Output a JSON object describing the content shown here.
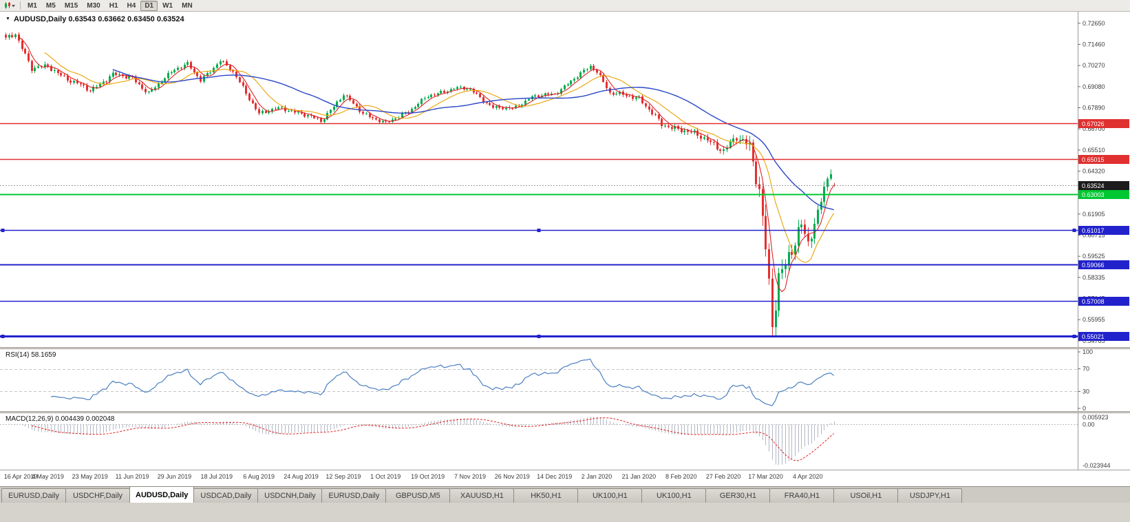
{
  "toolbar": {
    "chart_icon": "candlestick-chart-icon",
    "periods": [
      "M1",
      "M5",
      "M15",
      "M30",
      "H1",
      "H4",
      "D1",
      "W1",
      "MN"
    ],
    "active_period": "D1"
  },
  "chart": {
    "title": "AUDUSD,Daily 0.63543 0.63662 0.63450 0.63524",
    "rsi_label": "RSI(14) 58.1659",
    "macd_label": "MACD(12,26,9) 0.004439 0.002048"
  },
  "chart_data": {
    "type": "candlestick",
    "symbol": "AUDUSD",
    "timeframe": "Daily",
    "last_ohlc": {
      "open": 0.63543,
      "high": 0.63662,
      "low": 0.6345,
      "close": 0.63524
    },
    "current_price_label": "0.63524",
    "colors": {
      "up": "#00ab4e",
      "down": "#e33030",
      "background": "#ffffff"
    },
    "price_axis": {
      "max": 0.733,
      "min": 0.5441,
      "ticks": [
        "0.72650",
        "0.71460",
        "0.70270",
        "0.69080",
        "0.67890",
        "0.66700",
        "0.65510",
        "0.64320",
        "0.61905",
        "0.60715",
        "0.59525",
        "0.58335",
        "0.57145",
        "0.55955",
        "0.54765"
      ]
    },
    "hlines": [
      {
        "price": 0.67026,
        "label": "0.67026",
        "color": "#e03030",
        "width": 1.6,
        "handles": false
      },
      {
        "price": 0.65015,
        "label": "0.65015",
        "color": "#e03030",
        "width": 1.6,
        "handles": false
      },
      {
        "price": 0.63003,
        "label": "0.63003",
        "color": "#00c832",
        "width": 2,
        "handles": false
      },
      {
        "price": 0.61017,
        "label": "0.61017",
        "color": "#2222cc",
        "width": 1.6,
        "handles": true
      },
      {
        "price": 0.59066,
        "label": "0.59066",
        "color": "#2222cc",
        "width": 2,
        "handles": false
      },
      {
        "price": 0.57008,
        "label": "0.57008",
        "color": "#2222cc",
        "width": 1.6,
        "handles": false
      },
      {
        "price": 0.55021,
        "label": "0.55021",
        "color": "#2222cc",
        "width": 3,
        "handles": true
      }
    ],
    "date_axis": {
      "labels": [
        "16 Apr 2019",
        "4 May 2019",
        "23 May 2019",
        "11 Jun 2019",
        "29 Jun 2019",
        "18 Jul 2019",
        "6 Aug 2019",
        "24 Aug 2019",
        "12 Sep 2019",
        "1 Oct 2019",
        "19 Oct 2019",
        "7 Nov 2019",
        "26 Nov 2019",
        "14 Dec 2019",
        "2 Jan 2020",
        "21 Jan 2020",
        "8 Feb 2020",
        "27 Feb 2020",
        "17 Mar 2020",
        "4 Apr 2020"
      ],
      "candles_per_label": 13
    },
    "candles": {
      "count": 256,
      "close_anchors": [
        [
          0,
          0.7175
        ],
        [
          3,
          0.7208
        ],
        [
          8,
          0.701
        ],
        [
          13,
          0.7022
        ],
        [
          20,
          0.694
        ],
        [
          26,
          0.6888
        ],
        [
          33,
          0.6975
        ],
        [
          39,
          0.6958
        ],
        [
          44,
          0.6868
        ],
        [
          52,
          0.701
        ],
        [
          56,
          0.7035
        ],
        [
          60,
          0.694
        ],
        [
          66,
          0.7058
        ],
        [
          70,
          0.6988
        ],
        [
          78,
          0.6758
        ],
        [
          85,
          0.6788
        ],
        [
          91,
          0.6756
        ],
        [
          97,
          0.6714
        ],
        [
          104,
          0.6862
        ],
        [
          110,
          0.6758
        ],
        [
          117,
          0.67
        ],
        [
          124,
          0.6772
        ],
        [
          130,
          0.6852
        ],
        [
          138,
          0.69
        ],
        [
          143,
          0.6892
        ],
        [
          150,
          0.679
        ],
        [
          156,
          0.6784
        ],
        [
          162,
          0.685
        ],
        [
          169,
          0.6868
        ],
        [
          180,
          0.7022
        ],
        [
          182,
          0.6998
        ],
        [
          186,
          0.6872
        ],
        [
          195,
          0.6845
        ],
        [
          202,
          0.6692
        ],
        [
          208,
          0.6668
        ],
        [
          216,
          0.661
        ],
        [
          221,
          0.6548
        ],
        [
          225,
          0.6618
        ],
        [
          229,
          0.6582
        ],
        [
          232,
          0.633
        ],
        [
          234,
          0.5988
        ],
        [
          236,
          0.5558
        ],
        [
          238,
          0.5812
        ],
        [
          241,
          0.5968
        ],
        [
          245,
          0.6128
        ],
        [
          247,
          0.6018
        ],
        [
          250,
          0.6182
        ],
        [
          252,
          0.6348
        ],
        [
          254,
          0.6448
        ],
        [
          255,
          0.6352
        ]
      ],
      "volatility_anchors": [
        [
          0,
          0.002
        ],
        [
          40,
          0.0018
        ],
        [
          100,
          0.0016
        ],
        [
          170,
          0.0014
        ],
        [
          200,
          0.002
        ],
        [
          225,
          0.003
        ],
        [
          231,
          0.006
        ],
        [
          234,
          0.009
        ],
        [
          237,
          0.0095
        ],
        [
          240,
          0.007
        ],
        [
          244,
          0.006
        ],
        [
          249,
          0.0048
        ],
        [
          255,
          0.0038
        ]
      ],
      "floor": 0.5525,
      "wick_floor": 0.5498,
      "spike": {
        "index": 236,
        "low": 0.5505
      }
    },
    "moving_averages": [
      {
        "period": 5,
        "color": "#dd2222",
        "width": 1.1
      },
      {
        "period": 13,
        "color": "#e8a200",
        "width": 1.1
      },
      {
        "period": 34,
        "color": "#2a46c8",
        "width": 1.4
      }
    ],
    "rsi": {
      "period": 14,
      "value": "58.1659",
      "color": "#4a7fc1",
      "axis": [
        "100",
        "70",
        "30",
        "0"
      ],
      "levels": [
        70,
        30
      ]
    },
    "macd": {
      "fast": 12,
      "slow": 26,
      "signal": 9,
      "values": [
        "0.004439",
        "0.002048"
      ],
      "axis_top": "0.005923",
      "axis_zero": "0.00",
      "axis_bottom": "-0.023944",
      "hist_color": "#b2b6c4",
      "signal_color": "#dd2222"
    }
  },
  "tabbar": {
    "tabs": [
      "EURUSD,Daily",
      "USDCHF,Daily",
      "AUDUSD,Daily",
      "USDCAD,Daily",
      "USDCNH,Daily",
      "EURUSD,Daily",
      "GBPUSD,M5",
      "XAUUSD,H1",
      "HK50,H1",
      "UK100,H1",
      "UK100,H1",
      "GER30,H1",
      "FRA40,H1",
      "USOil,H1",
      "USDJPY,H1"
    ],
    "active_index": 2
  }
}
